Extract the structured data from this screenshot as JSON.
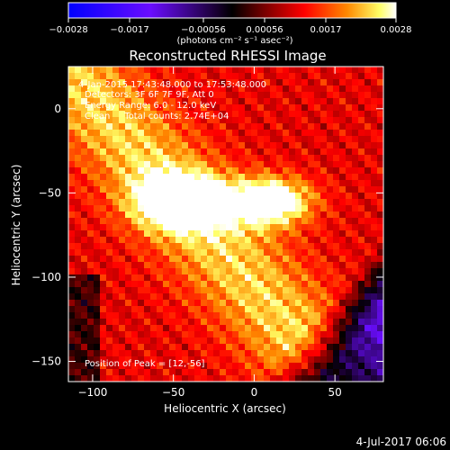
{
  "colorbar": {
    "ticks": [
      "-0.0028",
      "-0.0017",
      "-0.00056",
      "0.00056",
      "0.0017",
      "0.0028"
    ],
    "unit_label": "(photons cm⁻² s⁻¹ asec⁻²)"
  },
  "title": "Reconstructed RHESSI Image",
  "info": {
    "time": "4-Jan-2015 17:43:48.000 to 17:53:48.000",
    "detectors": "Detectors: 3F 6F 7F 9F, Att 0",
    "energy": "Energy Range: 6.0 - 12.0 keV",
    "clean": "Clean     Total counts: 2.74E+04",
    "peak": "Position of Peak = [12,-56]"
  },
  "footer_date": "4-Jul-2017 06:06",
  "chart_data": {
    "type": "heatmap",
    "title": "Reconstructed RHESSI Image",
    "xlabel": "Heliocentric X (arcsec)",
    "ylabel": "Heliocentric Y (arcsec)",
    "xlim": [
      -115,
      80
    ],
    "ylim": [
      -162,
      25
    ],
    "x_ticks": [
      -100,
      -50,
      0,
      50
    ],
    "y_ticks": [
      0,
      -50,
      -100,
      -150
    ],
    "x_tick_labels": [
      "−100",
      "−50",
      "0",
      "50"
    ],
    "y_tick_labels": [
      "0",
      "−50",
      "−100",
      "−150"
    ],
    "colorbar_range": [
      -0.0028,
      0.0028
    ],
    "colormap": [
      "#0000ff",
      "#6a0dff",
      "#8a2be2",
      "#000000",
      "#7a0000",
      "#ff0000",
      "#ff8800",
      "#ffff66",
      "#ffffff"
    ],
    "peak_position": [
      12,
      -56
    ]
  }
}
